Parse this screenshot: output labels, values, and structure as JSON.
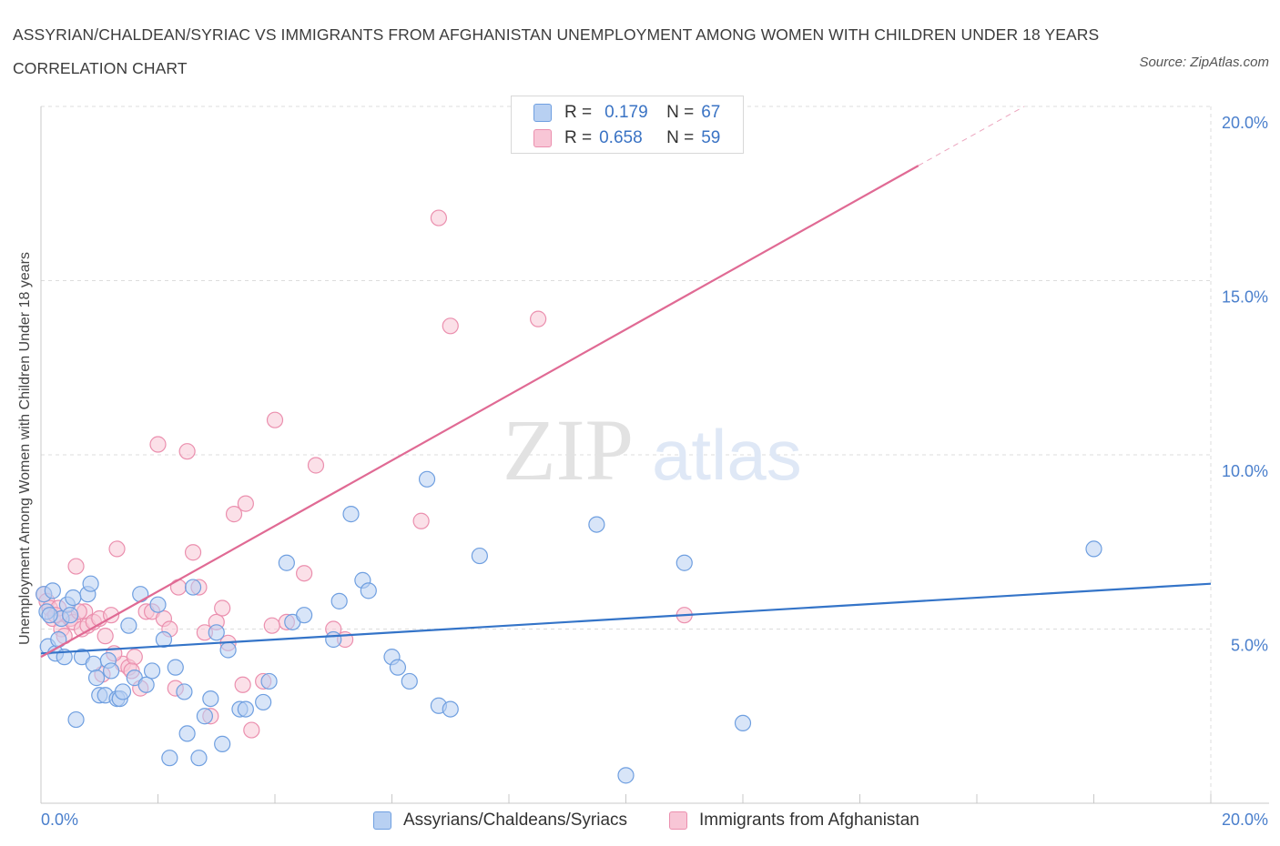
{
  "header": {
    "title": "ASSYRIAN/CHALDEAN/SYRIAC VS IMMIGRANTS FROM AFGHANISTAN UNEMPLOYMENT AMONG WOMEN WITH CHILDREN UNDER 18 YEARS CORRELATION CHART",
    "source": "Source: ZipAtlas.com"
  },
  "watermark": {
    "zip": "ZIP",
    "atlas": "atlas"
  },
  "legend": {
    "r_label": "R =",
    "n_label": "N =",
    "series": [
      {
        "r": "0.179",
        "n": "67"
      },
      {
        "r": "0.658",
        "n": "59"
      }
    ]
  },
  "colors": {
    "blue_fill": "#b8d0f2",
    "blue_stroke": "#6f9fe0",
    "blue_line": "#3474c8",
    "pink_fill": "#f8c6d6",
    "pink_stroke": "#eb8fae",
    "pink_line": "#e06a94",
    "tick_text": "#4a7fcc",
    "grid": "#dcdcdc"
  },
  "chart_data": {
    "type": "scatter",
    "title": "ASSYRIAN/CHALDEAN/SYRIAC VS IMMIGRANTS FROM AFGHANISTAN UNEMPLOYMENT AMONG WOMEN WITH CHILDREN UNDER 18 YEARS CORRELATION CHART",
    "xlabel": "",
    "ylabel": "Unemployment Among Women with Children Under 18 years",
    "xlim": [
      0,
      20
    ],
    "ylim": [
      0,
      20
    ],
    "x_tick_labels": [
      "0.0%",
      "20.0%"
    ],
    "y_ticks": [
      5,
      10,
      15,
      20
    ],
    "y_tick_labels": [
      "5.0%",
      "10.0%",
      "15.0%",
      "20.0%"
    ],
    "grid": true,
    "legend_position": "top-center",
    "series": [
      {
        "name": "Assyrians/Chaldeans/Syriacs",
        "color": "#6f9fe0",
        "trend": {
          "x": [
            0,
            20
          ],
          "y": [
            4.3,
            6.3
          ]
        },
        "x": [
          0.05,
          0.1,
          0.12,
          0.2,
          0.25,
          0.3,
          0.35,
          0.4,
          0.45,
          0.5,
          0.6,
          0.7,
          0.8,
          0.85,
          0.9,
          0.95,
          1.0,
          1.1,
          1.15,
          1.2,
          1.3,
          1.35,
          1.4,
          1.5,
          1.6,
          1.7,
          1.8,
          1.9,
          2.0,
          2.1,
          2.2,
          2.3,
          2.5,
          2.6,
          2.7,
          2.8,
          3.0,
          3.1,
          3.2,
          3.4,
          3.5,
          3.8,
          3.9,
          4.2,
          4.3,
          4.5,
          5.0,
          5.1,
          5.3,
          5.5,
          5.6,
          6.0,
          6.1,
          6.3,
          6.6,
          6.8,
          7.0,
          7.5,
          9.5,
          10.0,
          11.0,
          12.0,
          18.0,
          0.15,
          0.55,
          2.45,
          2.9
        ],
        "y": [
          6.0,
          5.5,
          4.5,
          6.1,
          4.3,
          4.7,
          5.3,
          4.2,
          5.7,
          5.4,
          2.4,
          4.2,
          6.0,
          6.3,
          4.0,
          3.6,
          3.1,
          3.1,
          4.1,
          3.8,
          3.0,
          3.0,
          3.2,
          5.1,
          3.6,
          6.0,
          3.4,
          3.8,
          5.7,
          4.7,
          1.3,
          3.9,
          2.0,
          6.2,
          1.3,
          2.5,
          4.9,
          1.7,
          4.4,
          2.7,
          2.7,
          2.9,
          3.5,
          6.9,
          5.2,
          5.4,
          4.7,
          5.8,
          8.3,
          6.4,
          6.1,
          4.2,
          3.9,
          3.5,
          9.3,
          2.8,
          2.7,
          7.1,
          8.0,
          0.8,
          6.9,
          2.3,
          7.3,
          5.4,
          5.9,
          3.2,
          3.0
        ]
      },
      {
        "name": "Immigrants from Afghanistan",
        "color": "#eb8fae",
        "trend": {
          "x": [
            0,
            15
          ],
          "y": [
            4.2,
            18.3
          ]
        },
        "x": [
          0.05,
          0.1,
          0.15,
          0.2,
          0.3,
          0.35,
          0.4,
          0.5,
          0.55,
          0.6,
          0.7,
          0.75,
          0.8,
          0.9,
          1.0,
          1.05,
          1.1,
          1.2,
          1.3,
          1.4,
          1.5,
          1.6,
          1.7,
          1.8,
          1.9,
          2.0,
          2.1,
          2.2,
          2.3,
          2.5,
          2.6,
          2.7,
          2.8,
          2.9,
          3.0,
          3.1,
          3.2,
          3.3,
          3.5,
          3.6,
          3.8,
          4.0,
          4.2,
          4.5,
          4.7,
          5.0,
          5.2,
          6.5,
          6.8,
          7.0,
          8.5,
          11.0,
          0.25,
          0.65,
          1.25,
          1.55,
          2.35,
          3.45,
          3.95
        ],
        "y": [
          6.0,
          5.8,
          5.6,
          5.3,
          5.6,
          5.0,
          4.8,
          5.3,
          5.2,
          6.8,
          5.0,
          5.5,
          5.1,
          5.2,
          5.3,
          3.7,
          4.8,
          5.4,
          7.3,
          4.0,
          3.9,
          4.2,
          3.3,
          5.5,
          5.5,
          10.3,
          5.3,
          5.0,
          3.3,
          10.1,
          7.2,
          6.2,
          4.9,
          2.5,
          5.2,
          5.6,
          4.6,
          8.3,
          8.6,
          2.1,
          3.5,
          11.0,
          5.2,
          6.6,
          9.7,
          5.0,
          4.7,
          8.1,
          16.8,
          13.7,
          13.9,
          5.4,
          5.4,
          5.5,
          4.3,
          3.8,
          6.2,
          3.4,
          5.1
        ]
      }
    ]
  }
}
